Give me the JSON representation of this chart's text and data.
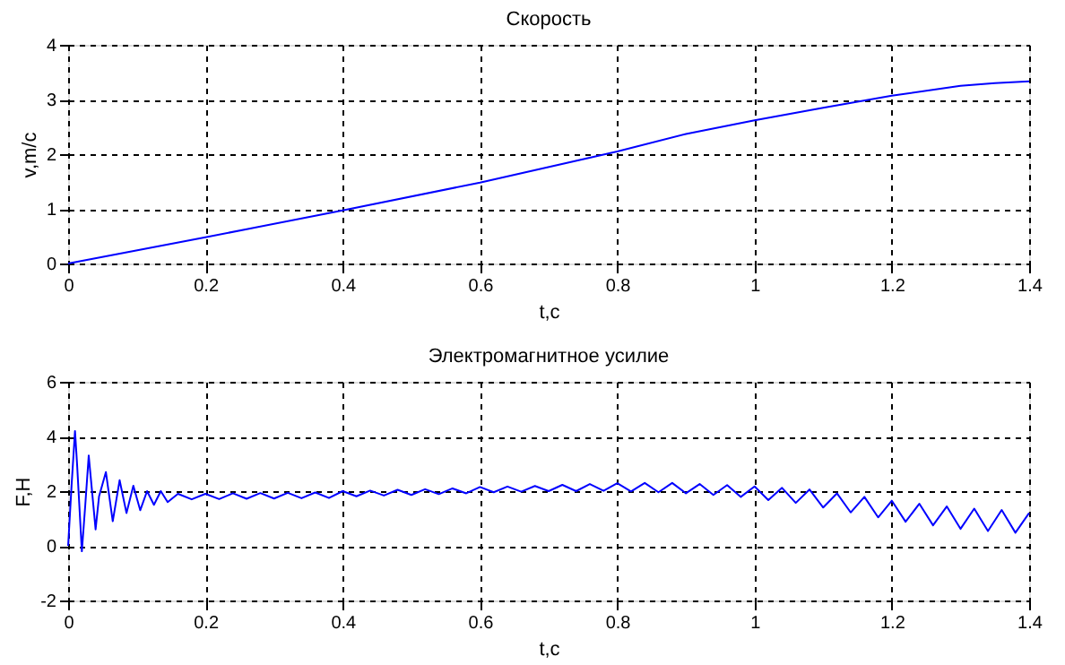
{
  "chart_data": [
    {
      "type": "line",
      "title": "Скорость",
      "xlabel": "t,c",
      "ylabel": "v,m/c",
      "xlim": [
        0,
        1.4
      ],
      "xticks": [
        0,
        0.2,
        0.4,
        0.6,
        0.8,
        1,
        1.2,
        1.4
      ],
      "ylim": [
        0,
        4
      ],
      "yticks": [
        0,
        1,
        2,
        3,
        4
      ],
      "grid": true,
      "line_style": "solid",
      "series": [
        {
          "color": "#0000ff",
          "x": [
            0,
            0.2,
            0.4,
            0.6,
            0.8,
            0.9,
            1.0,
            1.1,
            1.2,
            1.3,
            1.35,
            1.4
          ],
          "values": [
            0,
            0.48,
            0.97,
            1.48,
            2.05,
            2.37,
            2.62,
            2.85,
            3.07,
            3.25,
            3.3,
            3.33
          ]
        }
      ]
    },
    {
      "type": "line",
      "title": "Электромагнитное усилие",
      "xlabel": "t,c",
      "ylabel": "F,H",
      "xlim": [
        0,
        1.4
      ],
      "xticks": [
        0,
        0.2,
        0.4,
        0.6,
        0.8,
        1,
        1.2,
        1.4
      ],
      "ylim": [
        -2,
        6
      ],
      "yticks": [
        -2,
        0,
        2,
        4,
        6
      ],
      "grid": true,
      "line_style": "solid",
      "series": [
        {
          "color": "#0000ff",
          "x": [
            0,
            0.005,
            0.01,
            0.013,
            0.02,
            0.025,
            0.03,
            0.04,
            0.045,
            0.055,
            0.065,
            0.075,
            0.085,
            0.095,
            0.105,
            0.115,
            0.125,
            0.135,
            0.145,
            0.16,
            0.18,
            0.2,
            0.22,
            0.24,
            0.26,
            0.28,
            0.3,
            0.32,
            0.34,
            0.36,
            0.38,
            0.4,
            0.42,
            0.44,
            0.46,
            0.48,
            0.5,
            0.52,
            0.54,
            0.56,
            0.58,
            0.6,
            0.62,
            0.64,
            0.66,
            0.68,
            0.7,
            0.72,
            0.74,
            0.76,
            0.78,
            0.8,
            0.82,
            0.84,
            0.86,
            0.88,
            0.9,
            0.92,
            0.94,
            0.96,
            0.98,
            1.0,
            1.02,
            1.04,
            1.06,
            1.08,
            1.1,
            1.12,
            1.14,
            1.16,
            1.18,
            1.2,
            1.22,
            1.24,
            1.26,
            1.28,
            1.3,
            1.32,
            1.34,
            1.36,
            1.38,
            1.4
          ],
          "values": [
            0,
            2.2,
            4.2,
            3.0,
            -0.2,
            1.5,
            3.3,
            0.6,
            1.8,
            2.7,
            0.9,
            2.4,
            1.2,
            2.2,
            1.3,
            2.0,
            1.5,
            2.0,
            1.6,
            1.9,
            1.7,
            1.9,
            1.71,
            1.92,
            1.72,
            1.93,
            1.73,
            1.94,
            1.74,
            1.95,
            1.75,
            2.0,
            1.81,
            2.02,
            1.84,
            2.05,
            1.86,
            2.07,
            1.89,
            2.1,
            1.92,
            2.15,
            1.96,
            2.17,
            1.98,
            2.19,
            2.0,
            2.23,
            2.0,
            2.26,
            2.01,
            2.29,
            1.99,
            2.3,
            1.96,
            2.3,
            1.92,
            2.26,
            1.86,
            2.22,
            1.79,
            2.17,
            1.67,
            2.12,
            1.57,
            2.06,
            1.4,
            1.92,
            1.22,
            1.79,
            1.04,
            1.65,
            0.88,
            1.54,
            0.75,
            1.44,
            0.62,
            1.36,
            0.54,
            1.31,
            0.48,
            1.2
          ]
        }
      ]
    }
  ]
}
